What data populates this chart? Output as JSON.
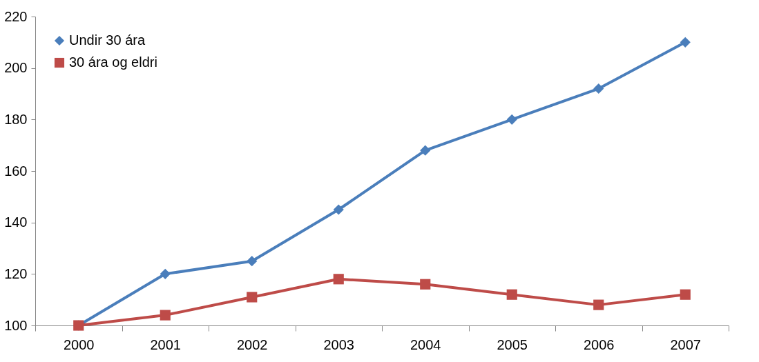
{
  "chart_data": {
    "type": "line",
    "categories": [
      "2000",
      "2001",
      "2002",
      "2003",
      "2004",
      "2005",
      "2006",
      "2007"
    ],
    "series": [
      {
        "name": "Undir 30 ára",
        "color": "#4a7ebb",
        "marker": "diamond",
        "values": [
          100,
          120,
          125,
          145,
          168,
          180,
          192,
          210
        ]
      },
      {
        "name": "30 ára og eldri",
        "color": "#be4b48",
        "marker": "square",
        "values": [
          100,
          104,
          111,
          118,
          116,
          112,
          108,
          112
        ]
      }
    ],
    "ylim": [
      100,
      220
    ],
    "yticks": [
      100,
      120,
      140,
      160,
      180,
      200,
      220
    ],
    "legend": "top left",
    "line_style": "solid"
  }
}
